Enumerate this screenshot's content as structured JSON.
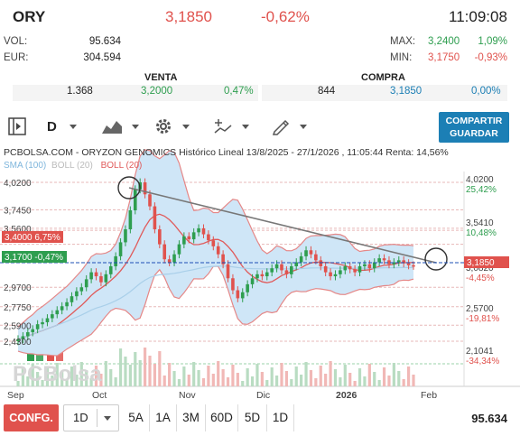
{
  "header": {
    "symbol": "ORY",
    "price": "3,1850",
    "change": "-0,62%",
    "time": "11:09:08"
  },
  "stats": {
    "vol_label": "VOL:",
    "vol_value": "95.634",
    "eur_label": "EUR:",
    "eur_value": "304.594",
    "max_label": "MAX:",
    "max_value": "3,2400",
    "max_pct": "1,09%",
    "min_label": "MIN:",
    "min_value": "3,1750",
    "min_pct": "-0,93%"
  },
  "trade": {
    "venta_label": "VENTA",
    "compra_label": "COMPRA",
    "venta_qty": "1.368",
    "venta_price": "3,2000",
    "venta_pct": "0,47%",
    "compra_qty": "844",
    "compra_price": "3,1850",
    "compra_pct": "0,00%"
  },
  "toolbar": {
    "interval": "D",
    "share_label_1": "COMPARTIR",
    "share_label_2": "GUARDAR"
  },
  "chart_title": "PCBOLSA.COM - ORYZON GENOMICS Histórico Lineal 13/8/2025 - 27/1/2026 , 11:05:44 Renta: 14,56%",
  "legend": {
    "sma": "SMA (100)",
    "boll_gray": "BOLL (20)",
    "boll_red": "BOLL (20)"
  },
  "watermark": "PCBolsa",
  "price_tags": {
    "left_red": "3,4000 6,75%",
    "left_green": "3,1700 -0,47%",
    "right_current": "3,1850"
  },
  "colors": {
    "up": "#2e9e4f",
    "down": "#e0524d",
    "blue": "#1c7fb5",
    "band_fill": "#cfe6f7",
    "boll_red": "#e05a5a",
    "sma": "#a9cfe9"
  },
  "chart_data": {
    "type": "line",
    "title": "PCBOLSA.COM - ORYZON GENOMICS Histórico Lineal 13/8/2025 - 27/1/2026 , 11:05:44 Renta: 14,56%",
    "x_labels": [
      "Sep",
      "Oct",
      "Nov",
      "Dic",
      "2026",
      "Feb"
    ],
    "left_ticks": [
      "4,0200",
      "3,7450",
      "3,5600",
      "2,9700",
      "2,7750",
      "2,5900",
      "2,4300"
    ],
    "right_ticks": [
      {
        "price": "4,0200",
        "pct": "25,42%"
      },
      {
        "price": "3,5410",
        "pct": "10,48%"
      },
      {
        "price": "3,0820",
        "pct": "-4,45%"
      },
      {
        "price": "2,5700",
        "pct": "-19,81%"
      },
      {
        "price": "2,1041",
        "pct": "-34,34%"
      }
    ],
    "ylim": [
      2.1,
      4.1
    ],
    "series": [
      {
        "name": "price",
        "values": [
          2.45,
          2.48,
          2.52,
          2.55,
          2.6,
          2.62,
          2.66,
          2.7,
          2.74,
          2.78,
          2.82,
          2.88,
          2.93,
          2.97,
          3.05,
          3.12,
          3.08,
          3.02,
          3.1,
          3.18,
          3.28,
          3.42,
          3.55,
          3.74,
          3.95,
          4.02,
          3.9,
          3.78,
          3.55,
          3.4,
          3.25,
          3.22,
          3.3,
          3.4,
          3.48,
          3.45,
          3.52,
          3.56,
          3.5,
          3.44,
          3.38,
          3.3,
          3.2,
          3.06,
          2.94,
          2.86,
          2.92,
          3.0,
          3.06,
          3.1,
          3.08,
          3.12,
          3.16,
          3.2,
          3.14,
          3.1,
          3.18,
          3.22,
          3.28,
          3.34,
          3.3,
          3.24,
          3.18,
          3.12,
          3.08,
          3.1,
          3.14,
          3.18,
          3.15,
          3.12,
          3.18,
          3.2,
          3.16,
          3.22,
          3.26,
          3.24,
          3.2,
          3.22,
          3.24,
          3.21,
          3.19,
          3.185
        ]
      }
    ]
  },
  "bottom": {
    "config": "CONFG.",
    "interval": "1D",
    "ranges": [
      "5A",
      "1A",
      "3M",
      "60D",
      "5D",
      "1D"
    ],
    "volume": "95.634"
  }
}
